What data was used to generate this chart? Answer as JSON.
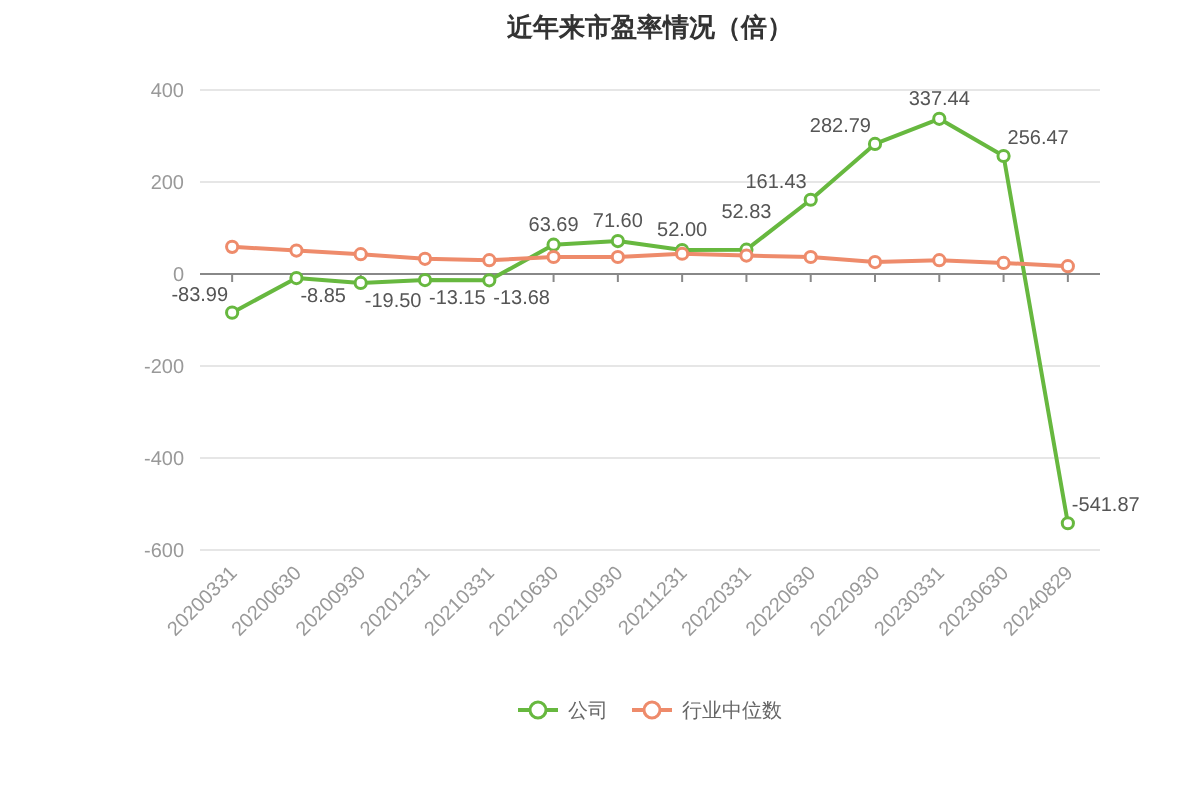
{
  "chart_data": {
    "type": "line",
    "title": "近年来市盈率情况（倍）",
    "categories": [
      "20200331",
      "20200630",
      "20200930",
      "20201231",
      "20210331",
      "20210630",
      "20210930",
      "20211231",
      "20220331",
      "20220630",
      "20220930",
      "20230331",
      "20230630",
      "20240829"
    ],
    "series": [
      {
        "name": "公司",
        "color": "#67b83f",
        "values": [
          -83.99,
          -8.85,
          -19.5,
          -13.15,
          -13.68,
          63.69,
          71.6,
          52.0,
          52.83,
          161.43,
          282.79,
          337.44,
          256.47,
          -541.87
        ],
        "value_labels": [
          "-83.99",
          "-8.85",
          "-19.50",
          "-13.15",
          "-13.68",
          "63.69",
          "71.60",
          "52.00",
          "52.83",
          "161.43",
          "282.79",
          "337.44",
          "256.47",
          "-541.87"
        ]
      },
      {
        "name": "行业中位数",
        "color": "#ee8b6b",
        "values": [
          59,
          51,
          43,
          33,
          30,
          37,
          37,
          44,
          40,
          37,
          26,
          30,
          24,
          17
        ]
      }
    ],
    "ylim": [
      -600,
      400
    ],
    "yticks": [
      -600,
      -400,
      -200,
      0,
      200,
      400
    ],
    "grid": "y",
    "legend": "bottom",
    "marker": "circle"
  }
}
